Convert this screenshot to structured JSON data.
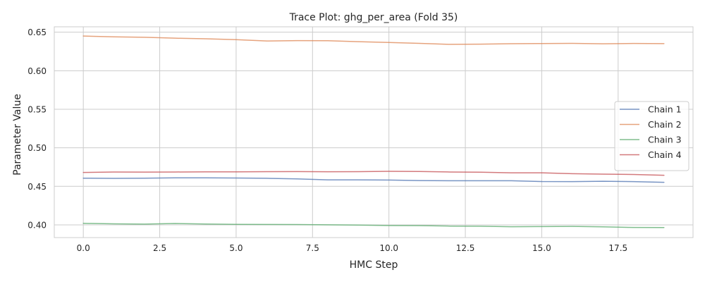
{
  "chart_data": {
    "type": "line",
    "title": "Trace Plot: ghg_per_area (Fold 35)",
    "xlabel": "HMC Step",
    "ylabel": "Parameter Value",
    "xlim": [
      -0.95,
      19.95
    ],
    "ylim": [
      0.3835,
      0.657
    ],
    "xticks": [
      0.0,
      2.5,
      5.0,
      7.5,
      10.0,
      12.5,
      15.0,
      17.5
    ],
    "xtick_labels": [
      "0.0",
      "2.5",
      "5.0",
      "7.5",
      "10.0",
      "12.5",
      "15.0",
      "17.5"
    ],
    "yticks": [
      0.4,
      0.45,
      0.5,
      0.55,
      0.6,
      0.65
    ],
    "ytick_labels": [
      "0.40",
      "0.45",
      "0.50",
      "0.55",
      "0.60",
      "0.65"
    ],
    "grid": true,
    "legend_position": "center-right",
    "x": [
      0,
      1,
      2,
      3,
      4,
      5,
      6,
      7,
      8,
      9,
      10,
      11,
      12,
      13,
      14,
      15,
      16,
      17,
      18,
      19
    ],
    "series": [
      {
        "name": "Chain 1",
        "color": "#4c72b0",
        "values": [
          0.4606,
          0.4603,
          0.4606,
          0.461,
          0.461,
          0.4608,
          0.4604,
          0.4597,
          0.4584,
          0.4584,
          0.4582,
          0.4575,
          0.4572,
          0.4572,
          0.4573,
          0.4562,
          0.4561,
          0.4566,
          0.4561,
          0.4552
        ]
      },
      {
        "name": "Chain 2",
        "color": "#dd8452",
        "values": [
          0.645,
          0.644,
          0.6434,
          0.6422,
          0.6414,
          0.6403,
          0.6386,
          0.639,
          0.6389,
          0.6377,
          0.6366,
          0.6355,
          0.6342,
          0.6345,
          0.635,
          0.6353,
          0.6355,
          0.6349,
          0.6354,
          0.6352
        ]
      },
      {
        "name": "Chain 3",
        "color": "#55a868",
        "values": [
          0.402,
          0.4013,
          0.401,
          0.4018,
          0.4011,
          0.4006,
          0.4005,
          0.4004,
          0.4001,
          0.3997,
          0.3992,
          0.3991,
          0.3984,
          0.3983,
          0.3976,
          0.3978,
          0.398,
          0.3974,
          0.3966,
          0.3965
        ]
      },
      {
        "name": "Chain 4",
        "color": "#c44e52",
        "values": [
          0.468,
          0.4686,
          0.4684,
          0.4686,
          0.4688,
          0.4688,
          0.469,
          0.4691,
          0.4689,
          0.469,
          0.4695,
          0.4692,
          0.4686,
          0.4683,
          0.4675,
          0.4675,
          0.4664,
          0.4658,
          0.4654,
          0.4643
        ]
      }
    ]
  }
}
